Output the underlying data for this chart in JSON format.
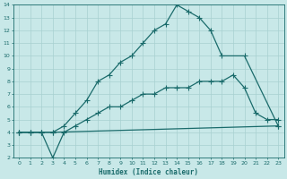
{
  "xlabel": "Humidex (Indice chaleur)",
  "bg_color": "#c8e8e8",
  "line_color": "#1a6b6b",
  "grid_color": "#a8d0d0",
  "xlim": [
    -0.5,
    23.5
  ],
  "ylim": [
    2,
    14
  ],
  "xticks": [
    0,
    1,
    2,
    3,
    4,
    5,
    6,
    7,
    8,
    9,
    10,
    11,
    12,
    13,
    14,
    15,
    16,
    17,
    18,
    19,
    20,
    21,
    22,
    23
  ],
  "yticks": [
    2,
    3,
    4,
    5,
    6,
    7,
    8,
    9,
    10,
    11,
    12,
    13,
    14
  ],
  "line1_x": [
    0,
    1,
    2,
    3,
    4,
    5,
    6,
    7,
    8,
    9,
    10,
    11,
    12,
    13,
    14,
    15,
    16,
    17,
    18,
    20,
    23
  ],
  "line1_y": [
    4,
    4,
    4,
    4,
    4.5,
    5.5,
    6.5,
    8,
    8.5,
    9.5,
    10,
    11,
    12,
    12.5,
    14,
    13.5,
    13,
    12,
    10,
    10,
    4.5
  ],
  "line2_x": [
    0,
    1,
    2,
    3,
    4,
    5,
    6,
    7,
    8,
    9,
    10,
    11,
    12,
    13,
    14,
    15,
    16,
    17,
    18,
    19,
    20,
    21,
    22,
    23
  ],
  "line2_y": [
    4,
    4,
    4,
    2,
    4,
    4.5,
    5,
    5.5,
    6,
    6,
    6.5,
    7,
    7,
    7.5,
    7.5,
    7.5,
    8,
    8,
    8,
    8.5,
    7.5,
    5.5,
    5,
    5
  ],
  "line3_x": [
    0,
    1,
    2,
    3,
    23
  ],
  "line3_y": [
    4,
    4,
    4,
    4,
    4.5
  ],
  "marker": "P",
  "markersize": 2.5,
  "linewidth": 0.9
}
